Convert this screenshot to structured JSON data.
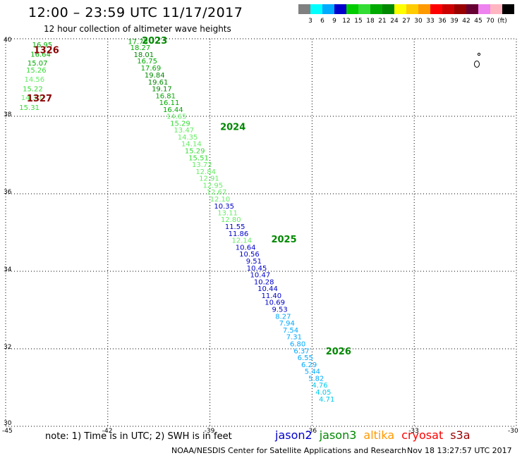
{
  "header": {
    "title": "12:00 – 23:59 UTC 11/17/2017",
    "subtitle": "12 hour collection of altimeter wave heights"
  },
  "legend": {
    "colors": [
      "#808080",
      "#00ffff",
      "#00aaff",
      "#0000cc",
      "#00cc00",
      "#33dd33",
      "#00aa00",
      "#008800",
      "#ffff00",
      "#ffcc00",
      "#ff9900",
      "#ff0000",
      "#cc0000",
      "#990000",
      "#660033",
      "#ee82ee",
      "#ffb6c1",
      "#000000"
    ],
    "labels": [
      "3",
      "6",
      "9",
      "12",
      "15",
      "18",
      "21",
      "24",
      "27",
      "30",
      "33",
      "36",
      "39",
      "42",
      "45",
      "70",
      "(ft)"
    ]
  },
  "map": {
    "lon_labels": [
      "-45",
      "-42",
      "-39",
      "-36",
      "-33",
      "-30"
    ],
    "lat_labels": [
      "40",
      "38",
      "36",
      "34",
      "32",
      "30"
    ]
  },
  "tracks": [
    {
      "id": "1326",
      "x": -44.18,
      "y": 39.625,
      "color": "#8b0000"
    },
    {
      "id": "1327",
      "x": -44.38,
      "y": 38.38,
      "color": "#8b0000"
    },
    {
      "id": "2023",
      "x": -41.0,
      "y": 39.875,
      "color": "#008800"
    },
    {
      "id": "2024",
      "x": -38.7,
      "y": 37.65,
      "color": "#008800"
    },
    {
      "id": "2025",
      "x": -37.2,
      "y": 34.745,
      "color": "#008800"
    },
    {
      "id": "2026",
      "x": -35.6,
      "y": 31.855,
      "color": "#008800"
    }
  ],
  "points": [
    {
      "v": "16.95",
      "x": -44.22,
      "y": 39.78,
      "c": "#00aa00"
    },
    {
      "v": "16.64",
      "x": -44.27,
      "y": 39.54,
      "c": "#00aa00"
    },
    {
      "v": "15.07",
      "x": -44.36,
      "y": 39.31,
      "c": "#00aa00"
    },
    {
      "v": "15.26",
      "x": -44.4,
      "y": 39.13,
      "c": "#33dd33"
    },
    {
      "v": "14.56",
      "x": -44.45,
      "y": 38.89,
      "c": "#66ee66"
    },
    {
      "v": "15.22",
      "x": -44.5,
      "y": 38.65,
      "c": "#33dd33"
    },
    {
      "v": "14.30",
      "x": -44.55,
      "y": 38.42,
      "c": "#66ee66"
    },
    {
      "v": "15.31",
      "x": -44.6,
      "y": 38.16,
      "c": "#33dd33"
    },
    {
      "v": "17.78",
      "x": -41.41,
      "y": 39.865,
      "c": "#00aa00"
    },
    {
      "v": "18.27",
      "x": -41.34,
      "y": 39.705,
      "c": "#00aa00"
    },
    {
      "v": "18.01",
      "x": -41.24,
      "y": 39.53,
      "c": "#008800"
    },
    {
      "v": "16.75",
      "x": -41.14,
      "y": 39.36,
      "c": "#00aa00"
    },
    {
      "v": "17.69",
      "x": -41.03,
      "y": 39.18,
      "c": "#00aa00"
    },
    {
      "v": "19.84",
      "x": -40.92,
      "y": 39.0,
      "c": "#008800"
    },
    {
      "v": "19.61",
      "x": -40.82,
      "y": 38.82,
      "c": "#008800"
    },
    {
      "v": "19.17",
      "x": -40.71,
      "y": 38.645,
      "c": "#008800"
    },
    {
      "v": "16.81",
      "x": -40.6,
      "y": 38.465,
      "c": "#00aa00"
    },
    {
      "v": "16.11",
      "x": -40.49,
      "y": 38.29,
      "c": "#00aa00"
    },
    {
      "v": "16.44",
      "x": -40.38,
      "y": 38.11,
      "c": "#00aa00"
    },
    {
      "v": "14.65",
      "x": -40.28,
      "y": 37.935,
      "c": "#66ee66"
    },
    {
      "v": "15.29",
      "x": -40.17,
      "y": 37.755,
      "c": "#33dd33"
    },
    {
      "v": "13.47",
      "x": -40.06,
      "y": 37.58,
      "c": "#66ee66"
    },
    {
      "v": "14.35",
      "x": -39.95,
      "y": 37.4,
      "c": "#66ee66"
    },
    {
      "v": "14.14",
      "x": -39.84,
      "y": 37.225,
      "c": "#66ee66"
    },
    {
      "v": "15.29",
      "x": -39.74,
      "y": 37.045,
      "c": "#33dd33"
    },
    {
      "v": "15.51",
      "x": -39.63,
      "y": 36.865,
      "c": "#33dd33"
    },
    {
      "v": "13.72",
      "x": -39.53,
      "y": 36.69,
      "c": "#66ee66"
    },
    {
      "v": "12.84",
      "x": -39.42,
      "y": 36.51,
      "c": "#66ee66"
    },
    {
      "v": "12.91",
      "x": -39.32,
      "y": 36.335,
      "c": "#66ee66"
    },
    {
      "v": "12.95",
      "x": -39.21,
      "y": 36.155,
      "c": "#66ee66"
    },
    {
      "v": "12.67",
      "x": -39.1,
      "y": 35.98,
      "c": "#66ee66"
    },
    {
      "v": "12.10",
      "x": -39.0,
      "y": 35.8,
      "c": "#66ee66"
    },
    {
      "v": "10.35",
      "x": -38.88,
      "y": 35.62,
      "c": "#0000cc"
    },
    {
      "v": "13.11",
      "x": -38.78,
      "y": 35.445,
      "c": "#66ee66"
    },
    {
      "v": "12.80",
      "x": -38.68,
      "y": 35.27,
      "c": "#66ee66"
    },
    {
      "v": "11.55",
      "x": -38.56,
      "y": 35.09,
      "c": "#0000cc"
    },
    {
      "v": "11.86",
      "x": -38.46,
      "y": 34.91,
      "c": "#0000cc"
    },
    {
      "v": "12.14",
      "x": -38.36,
      "y": 34.735,
      "c": "#66ee66"
    },
    {
      "v": "10.64",
      "x": -38.25,
      "y": 34.555,
      "c": "#0000cc"
    },
    {
      "v": "10.56",
      "x": -38.14,
      "y": 34.38,
      "c": "#0000cc"
    },
    {
      "v": "9.51",
      "x": -37.94,
      "y": 34.2,
      "c": "#0000cc"
    },
    {
      "v": "10.45",
      "x": -37.92,
      "y": 34.02,
      "c": "#0000cc"
    },
    {
      "v": "10.47",
      "x": -37.82,
      "y": 33.845,
      "c": "#0000cc"
    },
    {
      "v": "10.28",
      "x": -37.71,
      "y": 33.665,
      "c": "#0000cc"
    },
    {
      "v": "10.44",
      "x": -37.6,
      "y": 33.49,
      "c": "#0000cc"
    },
    {
      "v": "11.40",
      "x": -37.49,
      "y": 33.31,
      "c": "#0000cc"
    },
    {
      "v": "10.69",
      "x": -37.39,
      "y": 33.135,
      "c": "#0000cc"
    },
    {
      "v": "9.53",
      "x": -37.18,
      "y": 32.955,
      "c": "#0000cc"
    },
    {
      "v": "8.27",
      "x": -37.08,
      "y": 32.775,
      "c": "#00aaff"
    },
    {
      "v": "7.94",
      "x": -36.97,
      "y": 32.6,
      "c": "#00aaff"
    },
    {
      "v": "7.54",
      "x": -36.86,
      "y": 32.42,
      "c": "#00aaff"
    },
    {
      "v": "7.31",
      "x": -36.76,
      "y": 32.245,
      "c": "#00aaff"
    },
    {
      "v": "6.80",
      "x": -36.65,
      "y": 32.065,
      "c": "#00aaff"
    },
    {
      "v": "6.37",
      "x": -36.54,
      "y": 31.885,
      "c": "#00aaff"
    },
    {
      "v": "6.55",
      "x": -36.43,
      "y": 31.71,
      "c": "#00aaff"
    },
    {
      "v": "6.29",
      "x": -36.32,
      "y": 31.53,
      "c": "#00aaff"
    },
    {
      "v": "5.44",
      "x": -36.22,
      "y": 31.355,
      "c": "#00aaff"
    },
    {
      "v": "5.82",
      "x": -36.11,
      "y": 31.175,
      "c": "#00aaff"
    },
    {
      "v": "4.76",
      "x": -36.0,
      "y": 31.0,
      "c": "#00ccee"
    },
    {
      "v": "4.05",
      "x": -35.9,
      "y": 30.82,
      "c": "#00ccee"
    },
    {
      "v": "4.71",
      "x": -35.8,
      "y": 30.64,
      "c": "#00ccee"
    }
  ],
  "footer": {
    "note": "note: 1) Time is in UTC; 2) SWH is in feet",
    "satellites": [
      {
        "name": "jason2",
        "color": "#0000cc"
      },
      {
        "name": "jason3",
        "color": "#008800"
      },
      {
        "name": "altika",
        "color": "#ff9900"
      },
      {
        "name": "cryosat",
        "color": "#ff0000"
      },
      {
        "name": "s3a",
        "color": "#990000"
      }
    ],
    "credit": "NOAA/NESDIS Center for Satellite Applications and Research",
    "timestamp": "Nov 18 13:27:57 UTC 2017"
  }
}
